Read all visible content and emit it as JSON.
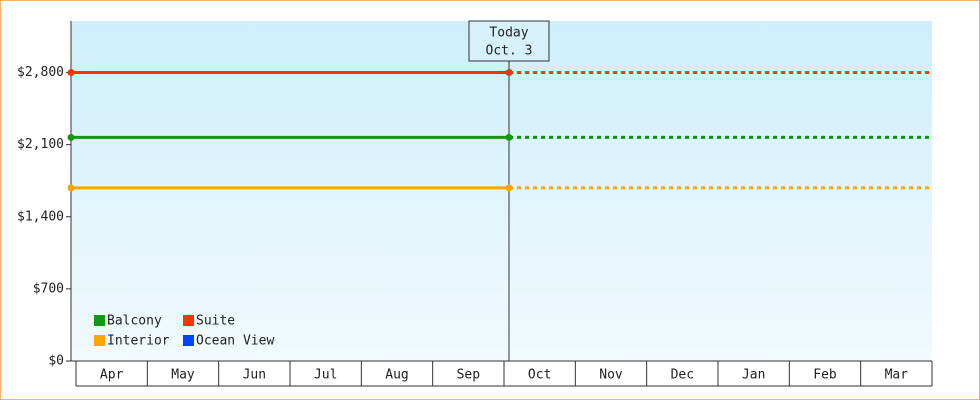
{
  "chart_data": {
    "type": "line",
    "categories": [
      "Apr",
      "May",
      "Jun",
      "Jul",
      "Aug",
      "Sep",
      "Oct",
      "Nov",
      "Dec",
      "Jan",
      "Feb",
      "Mar"
    ],
    "annotations": [
      "Today",
      "Oct. 3"
    ],
    "series": [
      {
        "name": "Balcony",
        "color": "#119911",
        "values": [
          2170,
          2170,
          2170,
          2170,
          2170,
          2170,
          2170,
          2170,
          2170,
          2170,
          2170,
          2170
        ]
      },
      {
        "name": "Suite",
        "color": "#ff3300",
        "values": [
          2800,
          2800,
          2800,
          2800,
          2800,
          2800,
          2800,
          2800,
          2800,
          2800,
          2800,
          2800
        ]
      },
      {
        "name": "Interior",
        "color": "#ffa500",
        "values": [
          1680,
          1680,
          1680,
          1680,
          1680,
          1680,
          1680,
          1680,
          1680,
          1680,
          1680,
          1680
        ]
      },
      {
        "name": "Ocean View",
        "color": "#0044ff",
        "values": [
          null,
          null,
          null,
          null,
          null,
          null,
          null,
          null,
          null,
          null,
          null,
          null
        ]
      }
    ],
    "ylim": [
      0,
      3300
    ],
    "yticks": [
      {
        "value": 0,
        "label": "$0"
      },
      {
        "value": 700,
        "label": "$700"
      },
      {
        "value": 1400,
        "label": "$1,400"
      },
      {
        "value": 2100,
        "label": "$2,100"
      },
      {
        "value": 2800,
        "label": "$2,800"
      }
    ]
  }
}
